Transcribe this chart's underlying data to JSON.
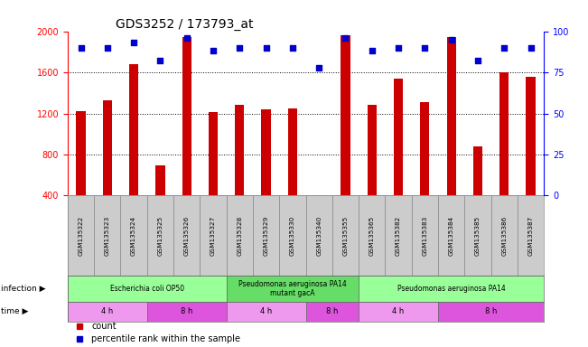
{
  "title": "GDS3252 / 173793_at",
  "samples": [
    "GSM135322",
    "GSM135323",
    "GSM135324",
    "GSM135325",
    "GSM135326",
    "GSM135327",
    "GSM135328",
    "GSM135329",
    "GSM135330",
    "GSM135340",
    "GSM135355",
    "GSM135365",
    "GSM135382",
    "GSM135383",
    "GSM135384",
    "GSM135385",
    "GSM135386",
    "GSM135387"
  ],
  "counts": [
    1220,
    1330,
    1680,
    690,
    1940,
    1210,
    1280,
    1240,
    1250,
    390,
    1960,
    1280,
    1540,
    1310,
    1940,
    880,
    1600,
    1560
  ],
  "percentile": [
    90,
    90,
    93,
    82,
    96,
    88,
    90,
    90,
    90,
    78,
    96,
    88,
    90,
    90,
    95,
    82,
    90,
    90
  ],
  "ylim_left": [
    400,
    2000
  ],
  "ylim_right": [
    0,
    100
  ],
  "yticks_left": [
    400,
    800,
    1200,
    1600,
    2000
  ],
  "yticks_right": [
    0,
    25,
    50,
    75,
    100
  ],
  "bar_color": "#cc0000",
  "dot_color": "#0000cc",
  "infection_groups": [
    {
      "label": "Escherichia coli OP50",
      "start": 0,
      "end": 6,
      "color": "#99ff99"
    },
    {
      "label": "Pseudomonas aeruginosa PA14\nmutant gacA",
      "start": 6,
      "end": 11,
      "color": "#66dd66"
    },
    {
      "label": "Pseudomonas aeruginosa PA14",
      "start": 11,
      "end": 18,
      "color": "#99ff99"
    }
  ],
  "time_groups": [
    {
      "label": "4 h",
      "start": 0,
      "end": 3,
      "color": "#ee99ee"
    },
    {
      "label": "8 h",
      "start": 3,
      "end": 6,
      "color": "#dd55dd"
    },
    {
      "label": "4 h",
      "start": 6,
      "end": 9,
      "color": "#ee99ee"
    },
    {
      "label": "8 h",
      "start": 9,
      "end": 11,
      "color": "#dd55dd"
    },
    {
      "label": "4 h",
      "start": 11,
      "end": 14,
      "color": "#ee99ee"
    },
    {
      "label": "8 h",
      "start": 14,
      "end": 18,
      "color": "#dd55dd"
    }
  ],
  "legend_count_label": "count",
  "legend_pct_label": "percentile rank within the sample",
  "xlabel_infection": "infection",
  "xlabel_time": "time",
  "bg_color": "#ffffff",
  "sample_label_bg": "#cccccc"
}
